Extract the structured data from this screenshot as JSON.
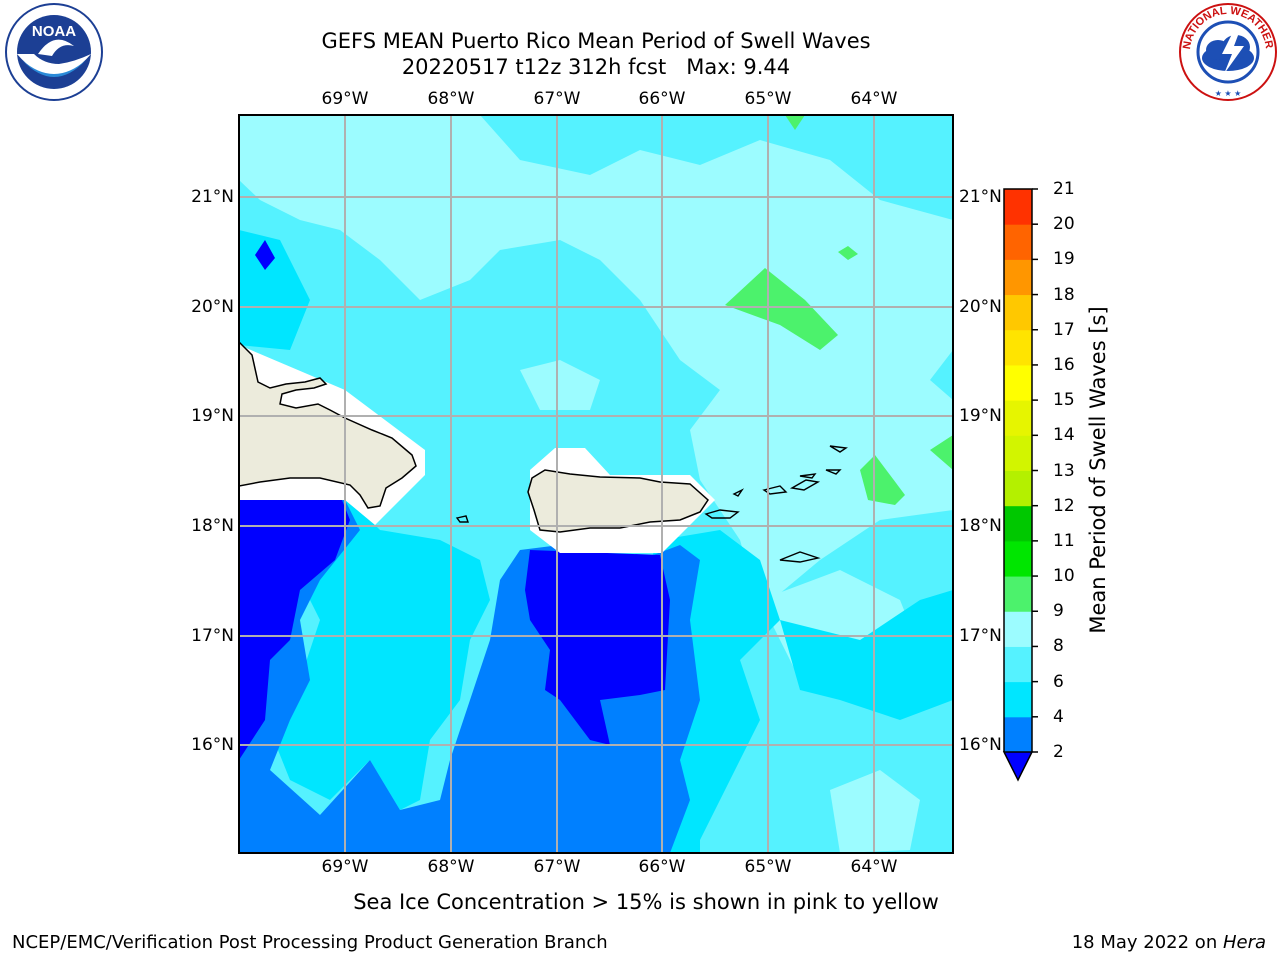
{
  "header": {
    "title_line1": "GEFS MEAN Puerto Rico Mean Period of Swell Waves",
    "title_line2": "20220517 t12z 312h fcst   Max: 9.44"
  },
  "logos": {
    "left": "noaa-logo",
    "left_text": "NOAA",
    "right": "national-weather-service-logo",
    "right_text": "NATIONAL WEATHER SERVICE"
  },
  "map": {
    "lon_labels": [
      "69°W",
      "68°W",
      "67°W",
      "66°W",
      "65°W",
      "64°W"
    ],
    "lat_labels": [
      "21°N",
      "20°N",
      "19°N",
      "18°N",
      "17°N",
      "16°N"
    ],
    "lon_range": [
      -70.0,
      -63.3
    ],
    "lat_range": [
      15.0,
      21.75
    ],
    "colors": {
      "land": "#ecebdc",
      "band_2_4": "#0080ff",
      "band_4_6": "#00e6ff",
      "band_6_8": "#55f2ff",
      "band_8_9": "#9cfcff",
      "band_9_10": "#4cf26c",
      "below_2": "#0000ff",
      "grid": "#b0b0b0"
    }
  },
  "colorbar": {
    "title": "Mean Period of Swell Waves [s]",
    "ticks": [
      "2",
      "4",
      "6",
      "8",
      "9",
      "10",
      "11",
      "12",
      "13",
      "14",
      "15",
      "16",
      "17",
      "18",
      "19",
      "20",
      "21"
    ],
    "colors": [
      "#0080ff",
      "#00e6ff",
      "#55f2ff",
      "#9cfcff",
      "#4cf26c",
      "#00e600",
      "#00c800",
      "#b4f000",
      "#d2f500",
      "#e6f500",
      "#ffff00",
      "#ffe400",
      "#ffc800",
      "#ff9600",
      "#ff6400",
      "#ff3200",
      "#ff0000"
    ],
    "extend_color": "#0000ff"
  },
  "note": "Sea Ice Concentration > 15% is shown in pink to yellow",
  "footer": {
    "left": "NCEP/EMC/Verification Post Processing Product Generation Branch",
    "right_date": "18 May 2022 on ",
    "right_host": "Hera"
  }
}
